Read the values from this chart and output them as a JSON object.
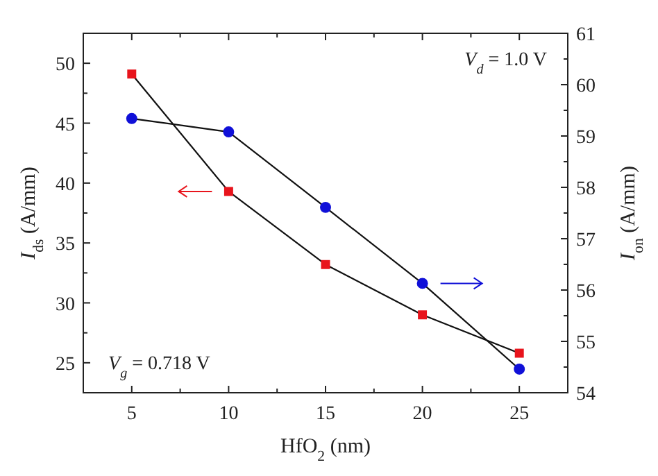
{
  "chart_data": {
    "type": "line",
    "xlabel": "HfO$_{2}$ (nm)",
    "ylabel": "I$_{ds}$ (A/mm)",
    "y2label": "I$_{on}$ (A/mm)",
    "x": [
      5,
      10,
      15,
      20,
      25
    ],
    "xlim": [
      2.5,
      27.5
    ],
    "xticks": [
      5,
      {
        "value": 7.5,
        "label": null
      },
      10,
      {
        "value": 12.5,
        "label": null
      },
      15,
      {
        "value": 17.5,
        "label": null
      },
      20,
      {
        "value": 22.5,
        "label": null
      },
      25
    ],
    "ylim": [
      22.5,
      52.5
    ],
    "yticks": [
      25,
      {
        "value": 27.5,
        "label": null
      },
      30,
      {
        "value": 32.5,
        "label": null
      },
      35,
      {
        "value": 37.5,
        "label": null
      },
      40,
      {
        "value": 42.5,
        "label": null
      },
      45,
      {
        "value": 47.5,
        "label": null
      },
      50
    ],
    "y2lim": [
      54,
      61
    ],
    "y2ticks": [
      54,
      {
        "value": 54.5,
        "label": null
      },
      55,
      {
        "value": 55.5,
        "label": null
      },
      56,
      {
        "value": 56.5,
        "label": null
      },
      57,
      {
        "value": 57.5,
        "label": null
      },
      58,
      {
        "value": 58.5,
        "label": null
      },
      59,
      {
        "value": 59.5,
        "label": null
      },
      60,
      {
        "value": 60.5,
        "label": null
      },
      61
    ],
    "series": [
      {
        "color": "#e8141c",
        "marker": "square",
        "values": [
          49.1,
          39.3,
          33.2,
          29.0,
          25.8
        ]
      },
      {
        "color": "#1010d8",
        "marker": "circle",
        "axis": "y2",
        "values": [
          59.34,
          59.08,
          57.61,
          56.13,
          54.46
        ]
      }
    ],
    "annotations": [
      "V$_{d}$ = 1.0 V",
      "V$_{g}$ = 0.718 V"
    ],
    "grid": false,
    "line_style": "solid"
  }
}
